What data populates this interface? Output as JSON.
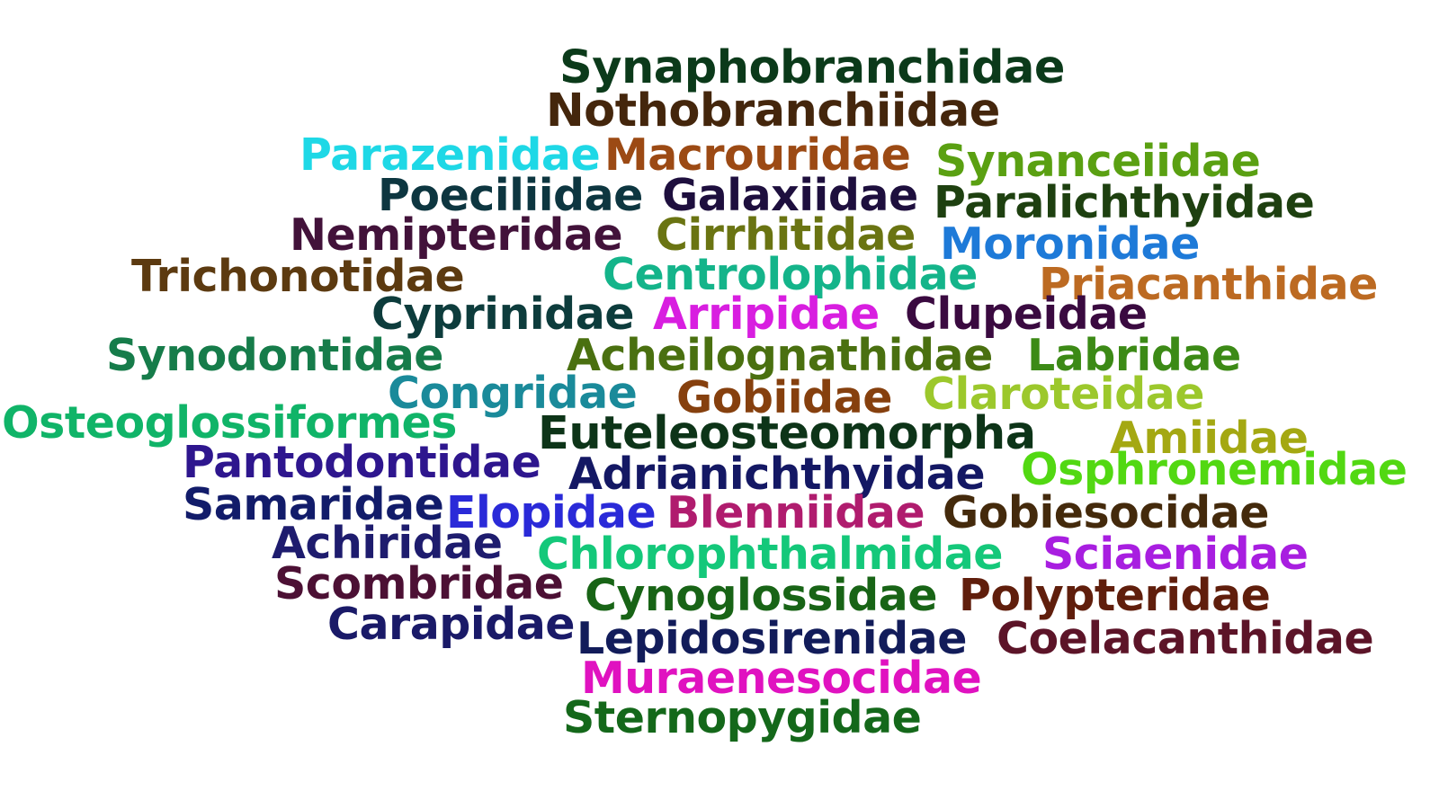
{
  "words": [
    {
      "text": "Synaphobranchidae",
      "color": "#0b3a1a"
    },
    {
      "text": "Nothobranchiidae",
      "color": "#44260c"
    },
    {
      "text": "Parazenidae",
      "color": "#1ed8e6"
    },
    {
      "text": "Macrouridae",
      "color": "#9c4a14"
    },
    {
      "text": "Synanceiidae",
      "color": "#5aa012"
    },
    {
      "text": "Poeciliidae",
      "color": "#0d3640"
    },
    {
      "text": "Galaxiidae",
      "color": "#1e0f3e"
    },
    {
      "text": "Paralichthyidae",
      "color": "#1e4010"
    },
    {
      "text": "Nemipteridae",
      "color": "#42123a"
    },
    {
      "text": "Cirrhitidae",
      "color": "#6a7412"
    },
    {
      "text": "Moronidae",
      "color": "#1e7ad8"
    },
    {
      "text": "Trichonotidae",
      "color": "#5c3a10"
    },
    {
      "text": "Centrolophidae",
      "color": "#14b48a"
    },
    {
      "text": "Priacanthidae",
      "color": "#bc6a22"
    },
    {
      "text": "Cyprinidae",
      "color": "#0d3c3c"
    },
    {
      "text": "Arripidae",
      "color": "#d81ee0"
    },
    {
      "text": "Clupeidae",
      "color": "#3a0a40"
    },
    {
      "text": "Synodontidae",
      "color": "#167c4a"
    },
    {
      "text": "Acheilognathidae",
      "color": "#4a7010"
    },
    {
      "text": "Labridae",
      "color": "#3c8a16"
    },
    {
      "text": "Congridae",
      "color": "#1a8a9a"
    },
    {
      "text": "Gobiidae",
      "color": "#86400e"
    },
    {
      "text": "Claroteidae",
      "color": "#9cc82c"
    },
    {
      "text": "Osteoglossiformes",
      "color": "#10b468"
    },
    {
      "text": "Euteleosteomorpha",
      "color": "#0d3418"
    },
    {
      "text": "Amiidae",
      "color": "#a4a812"
    },
    {
      "text": "Pantodontidae",
      "color": "#2e168e"
    },
    {
      "text": "Adrianichthyidae",
      "color": "#141864"
    },
    {
      "text": "Osphronemidae",
      "color": "#52d812"
    },
    {
      "text": "Samaridae",
      "color": "#121c6a"
    },
    {
      "text": "Elopidae",
      "color": "#2a2ad8"
    },
    {
      "text": "Blenniidae",
      "color": "#b01c6e"
    },
    {
      "text": "Gobiesocidae",
      "color": "#442a0c"
    },
    {
      "text": "Achiridae",
      "color": "#1e1c6e"
    },
    {
      "text": "Chlorophthalmidae",
      "color": "#14c87a"
    },
    {
      "text": "Sciaenidae",
      "color": "#a81ee0"
    },
    {
      "text": "Scombridae",
      "color": "#4c1034"
    },
    {
      "text": "Cynoglossidae",
      "color": "#186416"
    },
    {
      "text": "Polypteridae",
      "color": "#601e0c"
    },
    {
      "text": "Carapidae",
      "color": "#1a1a68"
    },
    {
      "text": "Lepidosirenidae",
      "color": "#121c5a"
    },
    {
      "text": "Coelacanthidae",
      "color": "#5c1428"
    },
    {
      "text": "Muraenesocidae",
      "color": "#e012c0"
    },
    {
      "text": "Sternopygidae",
      "color": "#14681a"
    }
  ]
}
